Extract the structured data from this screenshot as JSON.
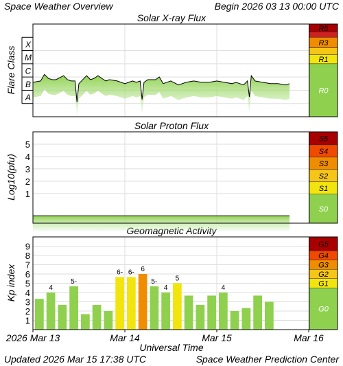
{
  "header": {
    "title": "Space Weather Overview",
    "begin": "Begin 2026 03 13 00:00 UTC"
  },
  "footer": {
    "updated": "Updated 2026 Mar 15 17:38 UTC",
    "center": "Space Weather Prediction Center"
  },
  "colors": {
    "green": "#8fd14f",
    "green_light": "#c8ecb0",
    "yellow": "#f2e50f",
    "gold": "#f5c518",
    "orange": "#f08c00",
    "red_orange": "#f04a00",
    "red": "#d80000",
    "dark_red": "#a80000",
    "grid": "#dddddd"
  },
  "chart_data": [
    {
      "type": "line",
      "title": "Solar X-ray Flux",
      "ylabel": "Flare Class",
      "y_scale": "log",
      "y_classes": [
        "A",
        "B",
        "C",
        "M",
        "X"
      ],
      "ylim_log10": [
        -9,
        -2
      ],
      "xlim_hours": [
        0,
        72
      ],
      "x_tick_labels": [
        "2026 Mar 13",
        "Mar 14",
        "Mar 15",
        "Mar 16"
      ],
      "series": [
        {
          "x_hours": [
            0,
            2,
            3,
            4,
            5,
            6,
            8,
            9,
            10,
            11,
            11.5,
            12,
            14,
            15,
            16,
            17,
            18,
            19,
            20,
            22,
            24,
            25,
            26,
            27,
            28,
            28.5,
            29,
            30,
            32,
            33,
            34,
            36,
            38,
            40,
            42,
            44,
            46,
            48,
            50,
            52,
            53,
            54,
            55,
            56,
            56.5,
            57,
            58,
            60,
            62,
            64,
            66,
            67
          ],
          "log10_flux": [
            -6.4,
            -6.3,
            -5.8,
            -6.1,
            -6.2,
            -6.2,
            -5.9,
            -6.2,
            -6.3,
            -6.3,
            -7.9,
            -6.5,
            -5.9,
            -6.2,
            -6.1,
            -5.9,
            -6.1,
            -6.3,
            -6.2,
            -6.3,
            -6.5,
            -6.4,
            -6.3,
            -6.4,
            -6.3,
            -7.7,
            -6.4,
            -6.2,
            -6.2,
            -6.0,
            -6.5,
            -6.3,
            -6.6,
            -6.4,
            -6.3,
            -6.4,
            -6.4,
            -6.3,
            -6.4,
            -6.5,
            -6.4,
            -6.5,
            -6.6,
            -6.3,
            -7.5,
            -5.9,
            -6.3,
            -6.4,
            -6.5,
            -6.5,
            -6.6,
            -6.5
          ]
        }
      ],
      "scale_labels": [
        "R5",
        "R3",
        "R1",
        "R0"
      ]
    },
    {
      "type": "line",
      "title": "Solar Proton Flux",
      "ylabel": "Log10(pfu)",
      "ylim": [
        -1.4,
        6
      ],
      "y_ticks": [
        1,
        2,
        3,
        4,
        5
      ],
      "xlim_hours": [
        0,
        72
      ],
      "series": [
        {
          "x_hours": [
            0,
            10,
            20,
            30,
            40,
            50,
            60,
            67
          ],
          "log10_pfu": [
            -0.8,
            -0.8,
            -0.8,
            -0.8,
            -0.8,
            -0.8,
            -0.8,
            -0.8
          ]
        }
      ],
      "scale_labels": [
        "S5",
        "S4",
        "S3",
        "S2",
        "S1",
        "S0"
      ]
    },
    {
      "type": "bar",
      "title": "Geomagnetic Activity",
      "ylabel": "Kp index",
      "xlabel": "Universal Time",
      "ylim": [
        0,
        10
      ],
      "y_ticks": [
        1,
        2,
        3,
        4,
        5,
        6,
        7,
        8,
        9
      ],
      "bar_interval_hours": 3,
      "values": [
        3.33,
        4.0,
        2.67,
        4.67,
        1.67,
        2.67,
        2.0,
        5.67,
        5.67,
        6.0,
        4.67,
        4.0,
        5.0,
        3.67,
        2.67,
        3.67,
        4.0,
        2.0,
        2.33,
        3.67,
        3.0
      ],
      "bar_labels": [
        "",
        "4",
        "",
        "5-",
        "",
        "",
        "",
        "6-",
        "6-",
        "6",
        "5-",
        "4",
        "5",
        "",
        "",
        "",
        "4",
        "",
        "",
        "",
        ""
      ],
      "scale_labels": [
        "G5",
        "G4",
        "G3",
        "G2",
        "G1",
        "G0"
      ]
    }
  ]
}
